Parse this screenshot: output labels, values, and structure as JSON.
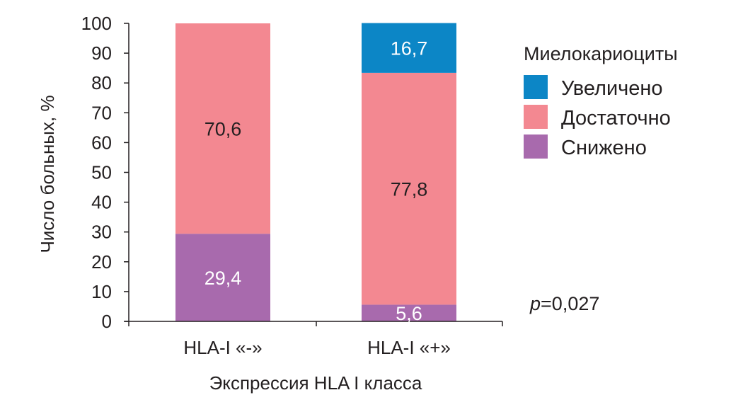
{
  "chart_data": {
    "type": "bar",
    "stacked": true,
    "categories": [
      "HLA-I «-»",
      "HLA-I «+»"
    ],
    "series": [
      {
        "name": "Снижено",
        "color": "#a86aad",
        "values": [
          29.4,
          5.6
        ],
        "labels": [
          "29,4",
          "5,6"
        ],
        "label_color": "#ffffff"
      },
      {
        "name": "Достаточно",
        "color": "#f38891",
        "values": [
          70.6,
          77.8
        ],
        "labels": [
          "70,6",
          "77,8"
        ],
        "label_color": "#231f20"
      },
      {
        "name": "Увеличено",
        "color": "#0c86c6",
        "values": [
          0,
          16.7
        ],
        "labels": [
          "",
          "16,7"
        ],
        "label_color": "#ffffff"
      }
    ],
    "xlabel": "Экспрессия HLA I класса",
    "ylabel": "Число больных, %",
    "ylim": [
      0,
      100
    ],
    "yticks": [
      0,
      10,
      20,
      30,
      40,
      50,
      60,
      70,
      80,
      90,
      100
    ],
    "grid": false,
    "legend": {
      "title": "Миелокариоциты",
      "position": "right",
      "order": [
        "Увеличено",
        "Достаточно",
        "Снижено"
      ]
    },
    "annotation": {
      "p_italic": "p",
      "p_rest": "=0,027"
    }
  }
}
